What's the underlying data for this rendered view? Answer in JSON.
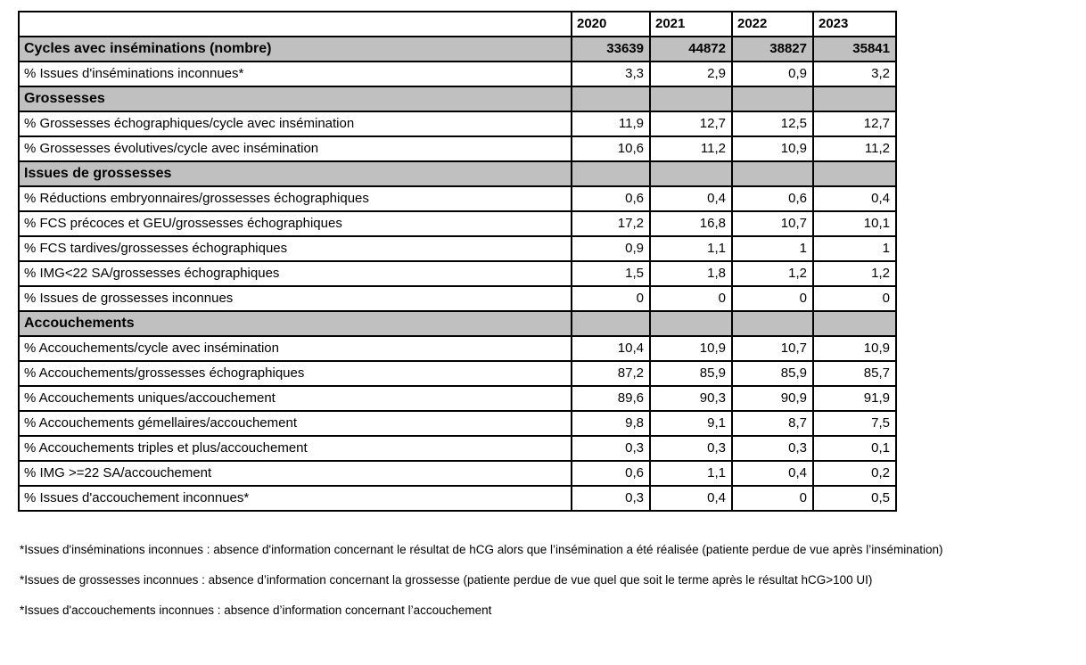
{
  "colors": {
    "section_bg": "#c0c0c0",
    "border": "#000000",
    "background": "#ffffff"
  },
  "table": {
    "years": [
      "2020",
      "2021",
      "2022",
      "2023"
    ],
    "rows": [
      {
        "type": "total",
        "label": "Cycles avec inséminations (nombre)",
        "values": [
          "33639",
          "44872",
          "38827",
          "35841"
        ]
      },
      {
        "type": "data",
        "label": "% Issues d'inséminations inconnues*",
        "values": [
          "3,3",
          "2,9",
          "0,9",
          "3,2"
        ]
      },
      {
        "type": "section",
        "label": "Grossesses",
        "values": [
          "",
          "",
          "",
          ""
        ]
      },
      {
        "type": "data",
        "label": "% Grossesses échographiques/cycle avec insémination",
        "values": [
          "11,9",
          "12,7",
          "12,5",
          "12,7"
        ]
      },
      {
        "type": "data",
        "label": "% Grossesses évolutives/cycle avec insémination",
        "values": [
          "10,6",
          "11,2",
          "10,9",
          "11,2"
        ]
      },
      {
        "type": "section",
        "label": "Issues de grossesses",
        "values": [
          "",
          "",
          "",
          ""
        ]
      },
      {
        "type": "data",
        "label": "% Réductions embryonnaires/grossesses échographiques",
        "values": [
          "0,6",
          "0,4",
          "0,6",
          "0,4"
        ]
      },
      {
        "type": "data",
        "label": "% FCS précoces et GEU/grossesses échographiques",
        "values": [
          "17,2",
          "16,8",
          "10,7",
          "10,1"
        ]
      },
      {
        "type": "data",
        "label": "% FCS tardives/grossesses échographiques",
        "values": [
          "0,9",
          "1,1",
          "1",
          "1"
        ]
      },
      {
        "type": "data",
        "label": "% IMG<22 SA/grossesses échographiques",
        "values": [
          "1,5",
          "1,8",
          "1,2",
          "1,2"
        ]
      },
      {
        "type": "data",
        "label": "% Issues de grossesses inconnues",
        "values": [
          "0",
          "0",
          "0",
          "0"
        ]
      },
      {
        "type": "section",
        "label": "Accouchements",
        "values": [
          "",
          "",
          "",
          ""
        ]
      },
      {
        "type": "data",
        "label": "% Accouchements/cycle avec insémination",
        "values": [
          "10,4",
          "10,9",
          "10,7",
          "10,9"
        ]
      },
      {
        "type": "data",
        "label": "% Accouchements/grossesses échographiques",
        "values": [
          "87,2",
          "85,9",
          "85,9",
          "85,7"
        ]
      },
      {
        "type": "data",
        "label": "% Accouchements uniques/accouchement",
        "values": [
          "89,6",
          "90,3",
          "90,9",
          "91,9"
        ]
      },
      {
        "type": "data",
        "label": "% Accouchements gémellaires/accouchement",
        "values": [
          "9,8",
          "9,1",
          "8,7",
          "7,5"
        ]
      },
      {
        "type": "data",
        "label": "% Accouchements triples et plus/accouchement",
        "values": [
          "0,3",
          "0,3",
          "0,3",
          "0,1"
        ]
      },
      {
        "type": "data",
        "label": "% IMG >=22 SA/accouchement",
        "values": [
          "0,6",
          "1,1",
          "0,4",
          "0,2"
        ]
      },
      {
        "type": "data",
        "label": "% Issues d'accouchement inconnues*",
        "values": [
          "0,3",
          "0,4",
          "0",
          "0,5"
        ]
      }
    ]
  },
  "footnotes": [
    "*Issues d'inséminations inconnues : absence d'information concernant le résultat de hCG alors que l’insémination a été réalisée (patiente perdue de vue après l’insémination)",
    "*Issues de grossesses inconnues : absence d’information concernant la grossesse (patiente perdue de vue quel que soit le terme après le résultat hCG>100 UI)",
    "*Issues d'accouchements inconnues : absence d’information concernant l’accouchement"
  ]
}
